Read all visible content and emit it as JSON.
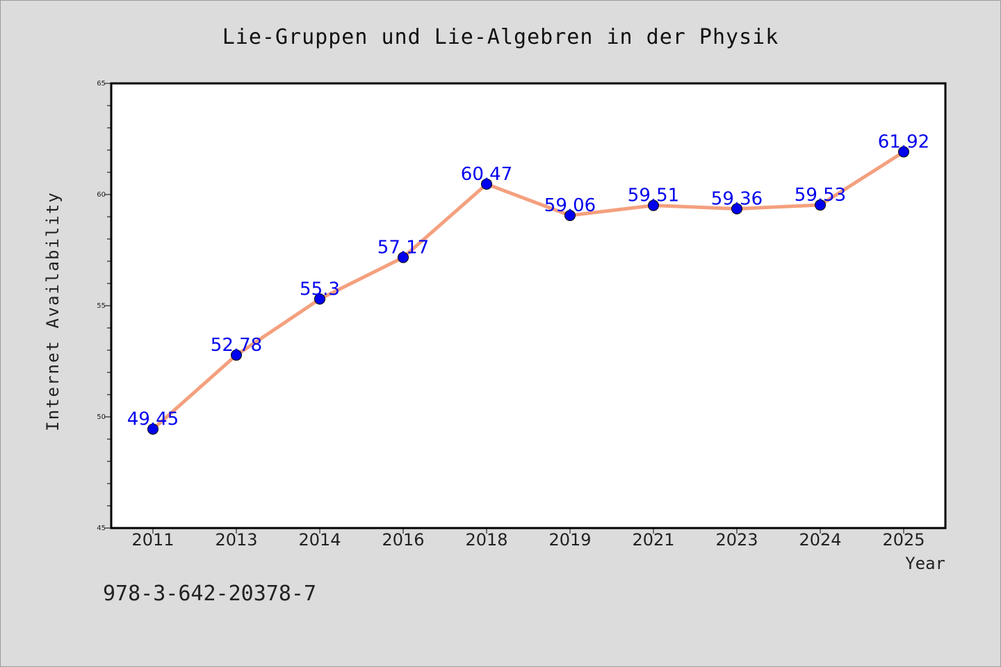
{
  "chart_data": {
    "type": "line",
    "title": "Lie-Gruppen und Lie-Algebren in der Physik",
    "xlabel": "Year",
    "ylabel": "Internet Availability",
    "categories": [
      "2011",
      "2013",
      "2014",
      "2016",
      "2018",
      "2019",
      "2021",
      "2023",
      "2024",
      "2025"
    ],
    "series": [
      {
        "values": [
          49.45,
          52.78,
          55.3,
          57.17,
          60.47,
          59.06,
          59.51,
          59.36,
          59.53,
          61.92
        ],
        "data_labels": [
          "49.45",
          "52.78",
          "55.3",
          "57.17",
          "60.47",
          "59.06",
          "59.51",
          "59.36",
          "59.53",
          "61.92"
        ],
        "line_color": "#f4a07e",
        "marker_color": "#0000ee",
        "label_color": "#0000ee"
      }
    ],
    "ylim": [
      45,
      65
    ],
    "y_ticks": [
      "45",
      "50",
      "55",
      "60",
      "65"
    ],
    "grid": false,
    "legend": "none"
  },
  "footer": {
    "isbn": "978-3-642-20378-7"
  },
  "colors": {
    "background": "#dcdcdc",
    "plot_background": "#ffffff"
  }
}
